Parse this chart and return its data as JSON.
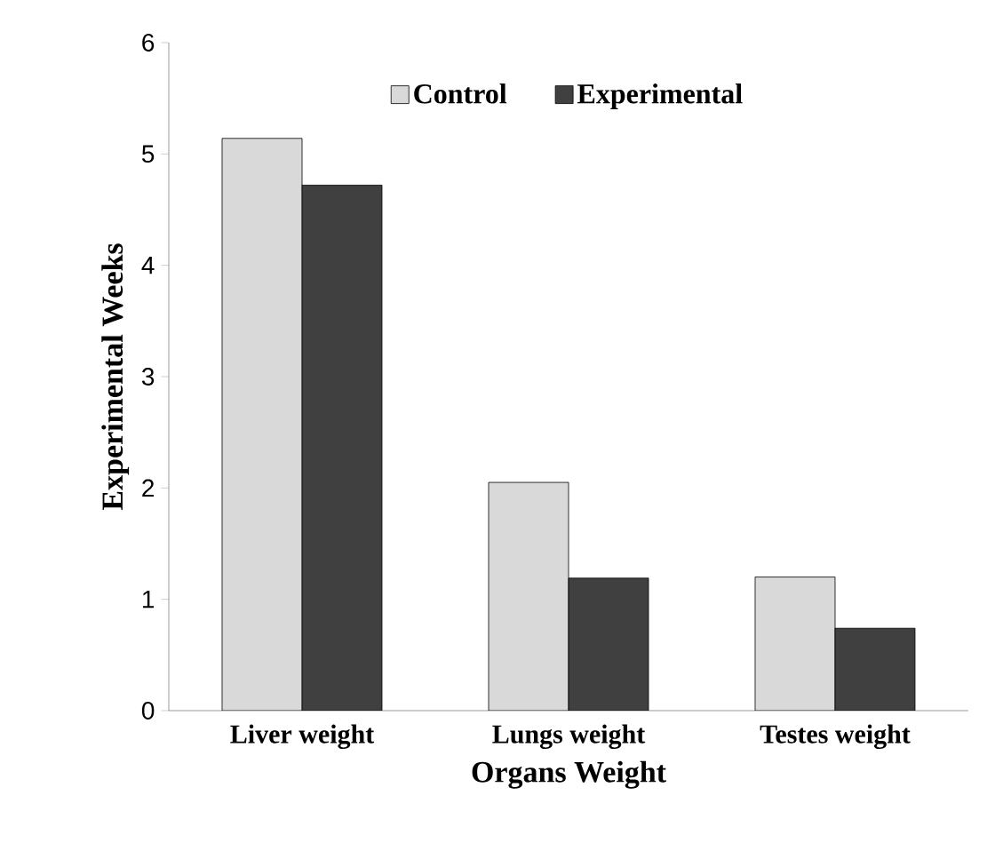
{
  "chart_data": {
    "type": "bar",
    "xlabel": "Organs Weight",
    "ylabel": "Experimental Weeks",
    "categories": [
      "Liver weight",
      "Lungs weight",
      "Testes weight"
    ],
    "series": [
      {
        "name": "Control",
        "color": "#d9d9d9",
        "values": [
          5.14,
          2.05,
          1.2
        ]
      },
      {
        "name": "Experimental",
        "color": "#404040",
        "values": [
          4.72,
          1.19,
          0.74
        ]
      }
    ],
    "ylim": [
      0,
      6
    ],
    "yticks": [
      0,
      1,
      2,
      3,
      4,
      5,
      6
    ],
    "legend": "top",
    "grid": false
  }
}
